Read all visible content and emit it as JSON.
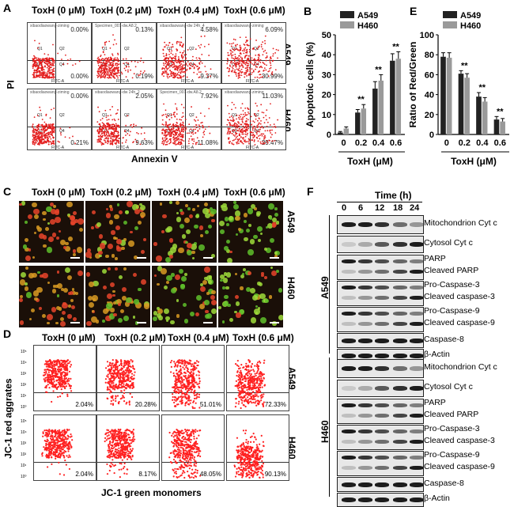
{
  "panel_letters": {
    "a": "A",
    "b": "B",
    "c": "C",
    "d": "D",
    "e": "E",
    "f": "F"
  },
  "treatments": [
    "ToxH (0 μM)",
    "ToxH (0.2 μM)",
    "ToxH (0.4 μM)",
    "ToxH (0.6 μM)"
  ],
  "cell_lines": [
    "A549",
    "H460"
  ],
  "panel_a": {
    "y_label": "PI",
    "x_label": "Annexin V",
    "quadrants": [
      "Q1",
      "Q2",
      "Q3",
      "Q4"
    ],
    "filenames": [
      "xibaodiaowang-ziming",
      "Specimen_001-dw.A8.2",
      "xibaodiaowang-dw 24h_4",
      "xibaodiaowang-ziming",
      "xibaodiaowang-ziming",
      "xibaodiaowang-dw 24h_2",
      "Specimen_001-dw.A8.2",
      "xibaodiaowang-ziming"
    ],
    "upper_right": [
      "0.00%",
      "0.13%",
      "4.58%",
      "6.09%",
      "0.00%",
      "2.05%",
      "7.92%",
      "11.03%"
    ],
    "lower_right": [
      "0.00%",
      "0.19%",
      "9.37%",
      "30.99%",
      "0.21%",
      "9.63%",
      "11.08%",
      "29.47%"
    ],
    "axis_name": "FITC-A"
  },
  "panel_d": {
    "y_label": "JC-1 red aggrates",
    "x_label": "JC-1 green monomers",
    "values": [
      "2.04%",
      "20.28%",
      "51.01%",
      "72.33%",
      "2.04%",
      "8.17%",
      "48.05%",
      "90.13%"
    ]
  },
  "panel_f": {
    "time_label": "Time (h)",
    "times": [
      "0",
      "6",
      "12",
      "18",
      "24"
    ],
    "a549_labels": [
      "Mitochondrion Cyt c",
      "Cytosol Cyt c",
      "PARP",
      "Cleaved PARP",
      "Pro-Caspase-3",
      "Cleaved caspase-3",
      "Pro-Caspase-9",
      "Cleaved caspase-9",
      "Caspase-8",
      "β-Actin"
    ],
    "h460_labels": [
      "Mitochondrion Cyt c",
      "Cytosol Cyt c",
      "PARP",
      "Cleaved PARP",
      "Pro-Caspase-3",
      "Cleaved caspase-3",
      "Pro-Caspase-9",
      "Cleaved caspase-9",
      "Caspase-8",
      "β-Actin"
    ]
  },
  "chart_data": [
    {
      "type": "bar",
      "title": "",
      "ylabel": "Apoptotic cells (%)",
      "xlabel": "ToxH (μM)",
      "categories": [
        "0",
        "0.2",
        "0.4",
        "0.6"
      ],
      "ylim": [
        0,
        50
      ],
      "yticks": [
        "0",
        "10",
        "20",
        "30",
        "40",
        "50"
      ],
      "series": [
        {
          "name": "A549",
          "color": "#222222",
          "values": [
            1,
            11,
            23,
            37
          ],
          "errors": [
            0.5,
            1.5,
            3.5,
            3.5
          ]
        },
        {
          "name": "H460",
          "color": "#9a9a9a",
          "values": [
            3,
            13,
            27,
            38
          ],
          "errors": [
            0.8,
            2,
            3,
            3.5
          ]
        }
      ],
      "significance": [
        "",
        "**",
        "**",
        "**"
      ]
    },
    {
      "type": "bar",
      "title": "",
      "ylabel": "Ratio of Red/Green",
      "xlabel": "ToxH (μM)",
      "categories": [
        "0",
        "0.2",
        "0.4",
        "0.6"
      ],
      "ylim": [
        0,
        100
      ],
      "yticks": [
        "0",
        "20",
        "40",
        "60",
        "80",
        "100"
      ],
      "series": [
        {
          "name": "A549",
          "color": "#222222",
          "values": [
            78,
            61,
            38,
            15
          ],
          "errors": [
            4,
            3,
            4,
            3
          ]
        },
        {
          "name": "H460",
          "color": "#9a9a9a",
          "values": [
            77,
            57,
            33,
            13
          ],
          "errors": [
            5,
            4,
            4,
            3
          ]
        }
      ],
      "significance": [
        "",
        "**",
        "**",
        "**"
      ]
    }
  ]
}
